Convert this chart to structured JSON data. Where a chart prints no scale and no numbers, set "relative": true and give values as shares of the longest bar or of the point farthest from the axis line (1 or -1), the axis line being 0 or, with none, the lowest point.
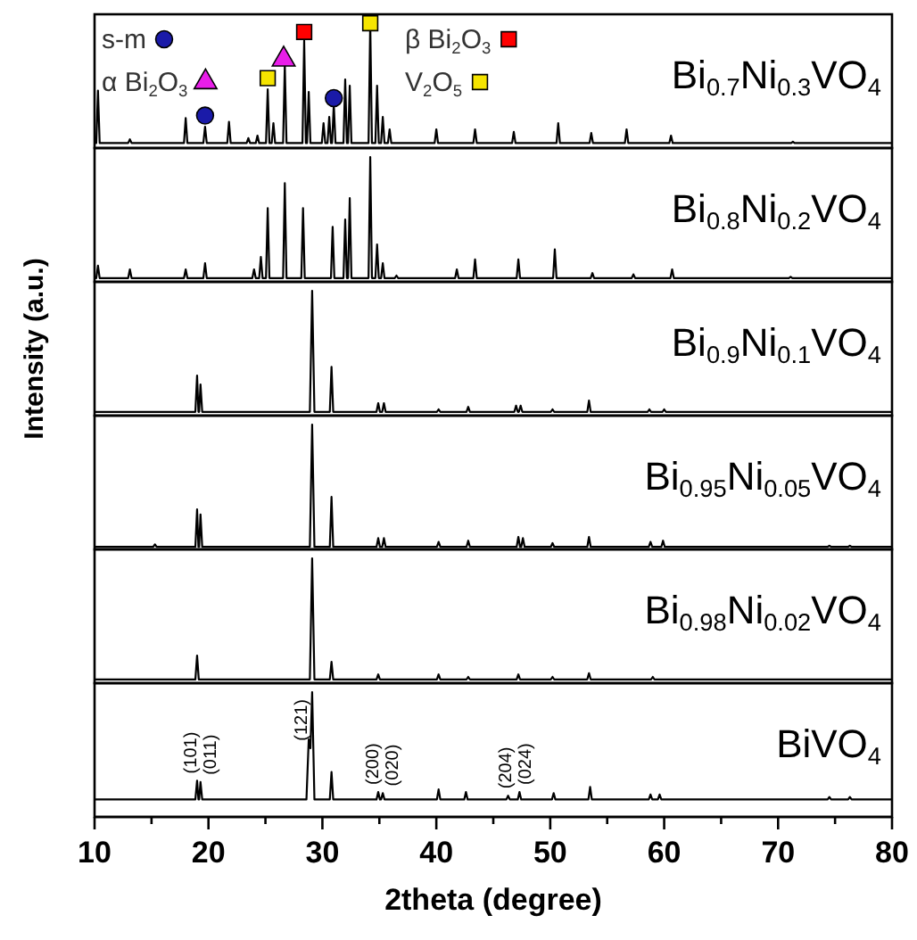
{
  "chart_data": [
    {
      "type": "line",
      "xlim": [
        10,
        80
      ],
      "relative": true,
      "tick_labels": false,
      "legend": "top",
      "series": [
        {
          "name": "Bi$_{0.7}$Ni$_{0.3}$VO$_{4}$",
          "color": "#000000",
          "x": [
            10,
            10.15,
            10.3,
            10.45,
            12.95,
            13.1,
            13.25,
            17.85,
            18,
            18.15,
            19.55,
            19.7,
            19.85,
            21.65,
            21.8,
            21.95,
            23.35,
            23.5,
            23.65,
            24.15,
            24.3,
            24.45,
            25.05,
            25.2,
            25.35,
            25.55,
            25.7,
            25.85,
            26.55,
            26.7,
            26.85,
            28.25,
            28.4,
            28.55,
            28.65,
            28.8,
            28.95,
            29.95,
            30.1,
            30.25,
            30.45,
            30.6,
            30.75,
            30.85,
            31,
            31.15,
            31.85,
            32,
            32.15,
            32.25,
            32.4,
            32.55,
            34.05,
            34.2,
            34.35,
            34.65,
            34.8,
            34.95,
            35.15,
            35.3,
            35.45,
            35.75,
            35.9,
            36.05,
            39.85,
            40,
            40.15,
            43.25,
            43.4,
            43.55,
            46.65,
            46.8,
            46.95,
            50.55,
            50.7,
            50.85,
            53.45,
            53.6,
            53.75,
            56.55,
            56.7,
            56.85,
            60.45,
            60.6,
            60.75,
            71.15,
            71.3,
            71.45,
            80
          ],
          "values": [
            0.04,
            0.04,
            0.46,
            0.04,
            0.04,
            0.07,
            0.04,
            0.04,
            0.24,
            0.04,
            0.04,
            0.17,
            0.04,
            0.04,
            0.21,
            0.04,
            0.04,
            0.08,
            0.04,
            0.04,
            0.1,
            0.04,
            0.04,
            0.47,
            0.04,
            0.04,
            0.2,
            0.04,
            0.04,
            0.67,
            0.04,
            0.04,
            0.86,
            0.04,
            0.04,
            0.45,
            0.04,
            0.04,
            0.2,
            0.04,
            0.04,
            0.25,
            0.04,
            0.04,
            0.35,
            0.04,
            0.04,
            0.55,
            0.04,
            0.04,
            0.5,
            0.04,
            0.04,
            1,
            0.04,
            0.04,
            0.5,
            0.04,
            0.04,
            0.25,
            0.04,
            0.04,
            0.15,
            0.04,
            0.04,
            0.15,
            0.04,
            0.04,
            0.15,
            0.04,
            0.04,
            0.13,
            0.04,
            0.04,
            0.2,
            0.04,
            0.04,
            0.12,
            0.04,
            0.04,
            0.15,
            0.04,
            0.04,
            0.1,
            0.04,
            0.04,
            0.05,
            0.04,
            0.04
          ]
        },
        {
          "name": "s-m",
          "type": "scatter",
          "marker": "circle",
          "color": "#1a1aa8",
          "x": [
            19.7,
            31.0
          ],
          "values": [
            0.26,
            0.4
          ]
        },
        {
          "name": "α Bi$_{2}$O$_{3}$",
          "type": "scatter",
          "marker": "triangle",
          "color": "#e91ee9",
          "x": [
            26.6
          ],
          "values": [
            0.71
          ]
        },
        {
          "name": "β Bi$_{2}$O$_{3}$",
          "type": "scatter",
          "marker": "square",
          "color": "#ff0000",
          "x": [
            28.4
          ],
          "values": [
            0.93
          ]
        },
        {
          "name": "V$_{2}$O$_{5}$",
          "type": "scatter",
          "marker": "square",
          "color": "#f5e400",
          "x": [
            25.2,
            34.2
          ],
          "values": [
            0.56,
            1.0
          ]
        }
      ]
    },
    {
      "type": "line",
      "xlim": [
        10,
        80
      ],
      "relative": true,
      "tick_labels": false,
      "series": [
        {
          "name": "Bi$_{0.8}$Ni$_{0.2}$VO$_{4}$",
          "color": "#000000",
          "x": [
            10,
            10.15,
            10.3,
            10.45,
            12.95,
            13.1,
            13.25,
            17.85,
            18,
            18.15,
            19.55,
            19.7,
            19.85,
            23.85,
            24,
            24.15,
            24.45,
            24.6,
            24.75,
            25.05,
            25.2,
            25.35,
            26.55,
            26.7,
            26.85,
            28.15,
            28.3,
            28.45,
            30.75,
            30.9,
            31.05,
            31.85,
            32,
            32.15,
            32.25,
            32.4,
            32.55,
            34.05,
            34.2,
            34.35,
            34.65,
            34.8,
            34.95,
            35.15,
            35.3,
            35.45,
            36.35,
            36.5,
            36.65,
            41.65,
            41.8,
            41.95,
            43.25,
            43.4,
            43.55,
            47.05,
            47.2,
            47.35,
            50.25,
            50.4,
            50.55,
            53.55,
            53.7,
            53.85,
            57.15,
            57.3,
            57.45,
            60.55,
            60.7,
            60.85,
            70.95,
            71.1,
            71.25,
            80
          ],
          "values": [
            0.03,
            0.03,
            0.13,
            0.03,
            0.03,
            0.1,
            0.03,
            0.03,
            0.1,
            0.03,
            0.03,
            0.15,
            0.03,
            0.03,
            0.1,
            0.03,
            0.03,
            0.2,
            0.03,
            0.03,
            0.59,
            0.03,
            0.03,
            0.79,
            0.03,
            0.03,
            0.59,
            0.03,
            0.03,
            0.44,
            0.03,
            0.03,
            0.5,
            0.03,
            0.03,
            0.67,
            0.03,
            0.03,
            1,
            0.03,
            0.03,
            0.3,
            0.03,
            0.03,
            0.15,
            0.03,
            0.03,
            0.05,
            0.03,
            0.03,
            0.1,
            0.03,
            0.03,
            0.18,
            0.03,
            0.03,
            0.18,
            0.03,
            0.03,
            0.26,
            0.03,
            0.03,
            0.07,
            0.03,
            0.03,
            0.06,
            0.03,
            0.03,
            0.1,
            0.03,
            0.03,
            0.04,
            0.03,
            0.03
          ]
        }
      ]
    },
    {
      "type": "line",
      "xlim": [
        10,
        80
      ],
      "relative": true,
      "tick_labels": false,
      "ylabel": "Intensity (a.u.)",
      "series": [
        {
          "name": "Bi$_{0.9}$Ni$_{0.1}$VO$_{4}$",
          "color": "#000000",
          "x": [
            10,
            18.85,
            19,
            19.12,
            19.18,
            19.3,
            19.45,
            28.9,
            29.1,
            29.3,
            30.65,
            30.8,
            30.95,
            34.75,
            34.9,
            35.05,
            35.25,
            35.4,
            35.55,
            40.05,
            40.2,
            40.35,
            42.65,
            42.8,
            42.95,
            46.85,
            47,
            47.15,
            47.25,
            47.4,
            47.55,
            50.05,
            50.2,
            50.35,
            53.25,
            53.4,
            53.55,
            58.55,
            58.7,
            58.85,
            59.85,
            60,
            60.15,
            80
          ],
          "values": [
            0.03,
            0.03,
            0.32,
            0.03,
            0.03,
            0.25,
            0.03,
            0.03,
            1,
            0.03,
            0.03,
            0.39,
            0.03,
            0.03,
            0.1,
            0.03,
            0.03,
            0.1,
            0.03,
            0.03,
            0.05,
            0.03,
            0.03,
            0.07,
            0.03,
            0.03,
            0.08,
            0.03,
            0.03,
            0.08,
            0.03,
            0.03,
            0.05,
            0.03,
            0.03,
            0.12,
            0.03,
            0.03,
            0.05,
            0.03,
            0.03,
            0.05,
            0.03,
            0.03
          ]
        }
      ]
    },
    {
      "type": "line",
      "xlim": [
        10,
        80
      ],
      "relative": true,
      "tick_labels": false,
      "series": [
        {
          "name": "Bi$_{0.95}$Ni$_{0.05}$VO$_{4}$",
          "color": "#000000",
          "x": [
            10,
            15.15,
            15.3,
            15.45,
            18.85,
            19,
            19.12,
            19.18,
            19.3,
            19.45,
            28.9,
            29.1,
            29.3,
            30.65,
            30.8,
            30.95,
            34.75,
            34.9,
            35.05,
            35.25,
            35.4,
            35.55,
            40.05,
            40.2,
            40.35,
            42.65,
            42.8,
            42.95,
            47.05,
            47.2,
            47.35,
            47.45,
            47.6,
            47.75,
            50.05,
            50.2,
            50.35,
            53.25,
            53.4,
            53.55,
            58.65,
            58.8,
            58.95,
            59.75,
            59.9,
            60.05,
            74.35,
            74.5,
            74.65,
            76.15,
            76.3,
            76.45,
            80
          ],
          "values": [
            0.02,
            0.02,
            0.04,
            0.02,
            0.02,
            0.32,
            0.02,
            0.02,
            0.28,
            0.02,
            0.02,
            1,
            0.02,
            0.02,
            0.42,
            0.02,
            0.02,
            0.09,
            0.02,
            0.02,
            0.09,
            0.02,
            0.02,
            0.06,
            0.02,
            0.02,
            0.07,
            0.02,
            0.02,
            0.1,
            0.02,
            0.02,
            0.09,
            0.02,
            0.02,
            0.05,
            0.02,
            0.02,
            0.1,
            0.02,
            0.02,
            0.06,
            0.02,
            0.02,
            0.07,
            0.02,
            0.02,
            0.03,
            0.02,
            0.02,
            0.03,
            0.02,
            0.02
          ]
        }
      ]
    },
    {
      "type": "line",
      "xlim": [
        10,
        80
      ],
      "relative": true,
      "tick_labels": false,
      "series": [
        {
          "name": "Bi$_{0.98}$Ni$_{0.02}$VO$_{4}$",
          "color": "#000000",
          "x": [
            10,
            18.85,
            19,
            19.15,
            28.9,
            29.1,
            29.3,
            30.65,
            30.8,
            30.95,
            34.75,
            34.9,
            35.05,
            40.05,
            40.2,
            40.35,
            42.65,
            42.8,
            42.95,
            47.05,
            47.2,
            47.35,
            50.05,
            50.2,
            50.35,
            53.25,
            53.4,
            53.55,
            58.85,
            59,
            59.15,
            80
          ],
          "values": [
            0.03,
            0.03,
            0.22,
            0.03,
            0.03,
            1,
            0.03,
            0.03,
            0.17,
            0.03,
            0.03,
            0.07,
            0.03,
            0.03,
            0.07,
            0.03,
            0.03,
            0.05,
            0.03,
            0.03,
            0.07,
            0.03,
            0.03,
            0.05,
            0.03,
            0.03,
            0.08,
            0.03,
            0.03,
            0.05,
            0.03,
            0.03
          ]
        }
      ]
    },
    {
      "type": "line",
      "xlim": [
        10,
        80
      ],
      "relative": true,
      "tick_labels": "x",
      "xlabel": "2theta (degree)",
      "xticks": [
        10,
        {
          "value": 15,
          "label": null
        },
        20,
        {
          "value": 25,
          "label": null
        },
        30,
        {
          "value": 35,
          "label": null
        },
        40,
        {
          "value": 45,
          "label": null
        },
        50,
        {
          "value": 55,
          "label": null
        },
        60,
        {
          "value": 65,
          "label": null
        },
        70,
        {
          "value": 75,
          "label": null
        },
        80
      ],
      "annotations": [
        {
          "text": "(101)",
          "x": 19.0,
          "y": 0.29
        },
        {
          "text": "(011)",
          "x": 19.3,
          "y": 0.28
        },
        {
          "text": "(121)",
          "x": 29.1,
          "y": 1
        },
        {
          "text": "(200)",
          "x": 34.9,
          "y": 0.2
        },
        {
          "text": "(020)",
          "x": 35.3,
          "y": 0.19
        },
        {
          "text": "(204)",
          "x": 46.3,
          "y": 0.17
        },
        {
          "text": "(024)",
          "x": 47.3,
          "y": 0.2
        }
      ],
      "series": [
        {
          "name": "BiVO$_{4}$",
          "color": "#000000",
          "x": [
            10,
            18.85,
            19,
            19.12,
            19.18,
            19.3,
            19.45,
            28.6,
            28.8,
            28.95,
            29.1,
            29.3,
            30.65,
            30.8,
            30.95,
            34.75,
            34.9,
            35.05,
            35.15,
            35.3,
            35.45,
            40.05,
            40.2,
            40.35,
            42.45,
            42.6,
            42.75,
            46.15,
            46.3,
            46.45,
            47.15,
            47.3,
            47.45,
            50.15,
            50.3,
            50.45,
            53.35,
            53.5,
            53.65,
            58.65,
            58.8,
            58.95,
            59.45,
            59.6,
            59.75,
            74.35,
            74.5,
            74.65,
            76.15,
            76.3,
            76.45,
            80
          ],
          "values": [
            0.14,
            0.14,
            0.29,
            0.14,
            0.14,
            0.28,
            0.14,
            0.14,
            0.62,
            0.55,
            1,
            0.14,
            0.14,
            0.36,
            0.14,
            0.14,
            0.2,
            0.14,
            0.14,
            0.19,
            0.14,
            0.14,
            0.22,
            0.14,
            0.14,
            0.2,
            0.14,
            0.14,
            0.17,
            0.14,
            0.14,
            0.2,
            0.14,
            0.14,
            0.19,
            0.14,
            0.14,
            0.24,
            0.14,
            0.14,
            0.18,
            0.14,
            0.14,
            0.18,
            0.14,
            0.14,
            0.16,
            0.14,
            0.14,
            0.16,
            0.14,
            0.14
          ]
        }
      ]
    }
  ]
}
